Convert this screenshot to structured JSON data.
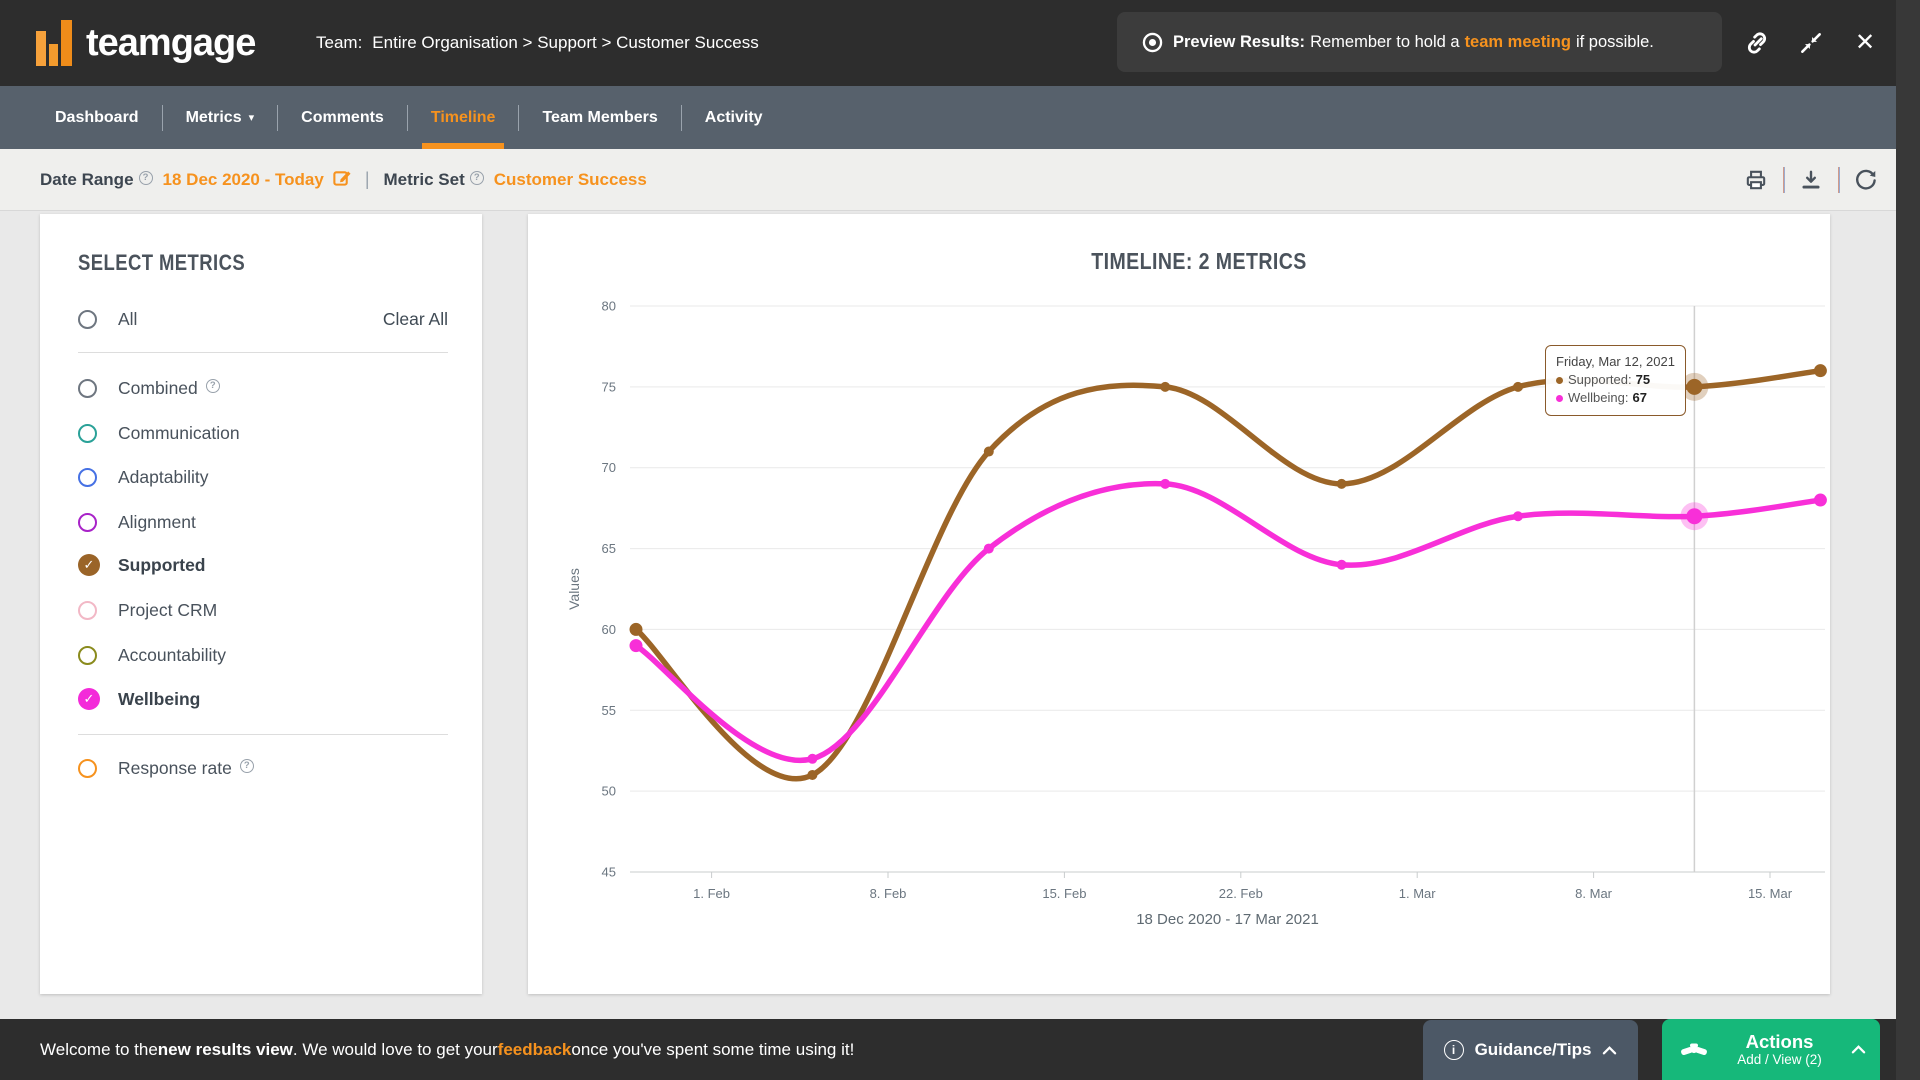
{
  "icons": {
    "check": "✓",
    "close": "✕",
    "caret": "▾",
    "help": "?",
    "info": "i",
    "pipe": "|"
  },
  "header": {
    "logo_text": "teamgage",
    "team_label": "Team:",
    "breadcrumb": "Entire Organisation > Support > Customer Success",
    "preview_bold": "Preview Results:",
    "preview_text": "Remember to hold a",
    "preview_link": "team meeting",
    "preview_suffix": "if possible."
  },
  "nav": {
    "items": [
      {
        "label": "Dashboard"
      },
      {
        "label": "Metrics"
      },
      {
        "label": "Comments"
      },
      {
        "label": "Timeline"
      },
      {
        "label": "Team Members"
      },
      {
        "label": "Activity"
      }
    ]
  },
  "daterow": {
    "date_label": "Date Range",
    "date_value": "18 Dec 2020 - Today",
    "separator": "|",
    "set_label": "Metric Set",
    "set_value": "Customer Success"
  },
  "sidebar": {
    "heading": "SELECT METRICS",
    "all_label": "All",
    "clear_all": "Clear All",
    "all_color": "#6e7680",
    "metrics": [
      {
        "label": "Combined",
        "color": "#6e7680",
        "checked": false
      },
      {
        "label": "Communication",
        "color": "#2aa198",
        "checked": false
      },
      {
        "label": "Adaptability",
        "color": "#4671e4",
        "checked": false
      },
      {
        "label": "Alignment",
        "color": "#a823c8",
        "checked": false
      },
      {
        "label": "Supported",
        "color": "#9a6428",
        "checked": true
      },
      {
        "label": "Project CRM",
        "color": "#f2b8c6",
        "checked": false
      },
      {
        "label": "Accountability",
        "color": "#8a8b1d",
        "checked": false
      },
      {
        "label": "Wellbeing",
        "color": "#f32bd9",
        "checked": true
      }
    ],
    "response": {
      "label": "Response rate",
      "color": "#f6921e",
      "checked": false
    }
  },
  "chart_data": {
    "type": "line",
    "title": "TIMELINE: 2 METRICS",
    "ylabel": "Values",
    "caption": "18 Dec 2020 - 17 Mar 2021",
    "ylim": [
      45,
      80
    ],
    "ytick_step": 5,
    "grid": true,
    "x_dates": [
      "29 Jan 2021",
      "5 Feb 2021",
      "12 Feb 2021",
      "19 Feb 2021",
      "26 Feb 2021",
      "5 Mar 2021",
      "12 Mar 2021",
      "17 Mar 2021"
    ],
    "x_day_offsets": [
      0,
      7,
      14,
      21,
      28,
      35,
      42,
      47
    ],
    "xtick_labels": [
      "1. Feb",
      "8. Feb",
      "15. Feb",
      "22. Feb",
      "1. Mar",
      "8. Mar",
      "15. Mar"
    ],
    "xtick_day_offsets": [
      3,
      10,
      17,
      24,
      31,
      38,
      45
    ],
    "series": [
      {
        "name": "Supported",
        "color": "#9c6527",
        "values": [
          60,
          51,
          71,
          75,
          69,
          75,
          75,
          76
        ]
      },
      {
        "name": "Wellbeing",
        "color": "#f82fd8",
        "values": [
          59,
          52,
          65,
          69,
          64,
          67,
          67,
          68
        ]
      }
    ],
    "highlight_index": 6,
    "tooltip": {
      "date": "Friday, Mar 12, 2021",
      "rows": [
        {
          "label": "Supported",
          "value": "75",
          "color": "#9c6527"
        },
        {
          "label": "Wellbeing",
          "value": "67",
          "color": "#f82fd8"
        }
      ]
    }
  },
  "footer": {
    "welcome": [
      "Welcome to the ",
      "new results view",
      ". We would love to get your ",
      "feedback",
      " once you've spent some time using it!"
    ],
    "guidance_label": "Guidance/Tips",
    "actions_label": "Actions",
    "actions_sub": "Add / View (2)"
  }
}
